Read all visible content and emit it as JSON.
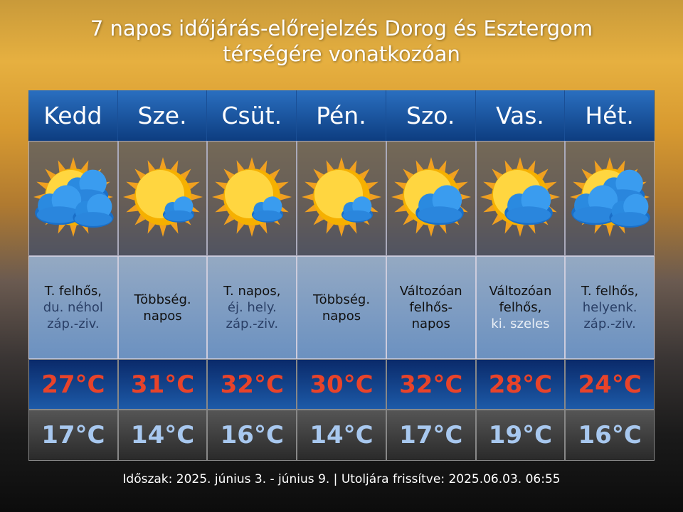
{
  "title": {
    "line1": "7 napos időjárás-előrejelzés Dorog és Esztergom",
    "line2": "térségére vonatkozóan"
  },
  "colors": {
    "high": "#e8432a",
    "low": "#a8c8ef",
    "header": "#1a5aa8"
  },
  "days": [
    {
      "name": "Kedd",
      "icon": "cloudy-sun-icon",
      "desc": [
        {
          "text": "T. felhős,",
          "tone": "dark"
        },
        {
          "text": "du. néhol",
          "tone": "blue"
        },
        {
          "text": "záp.-ziv.",
          "tone": "blue"
        }
      ],
      "high": "27°C",
      "low": "17°C"
    },
    {
      "name": "Sze.",
      "icon": "mostly-sunny-icon",
      "desc": [
        {
          "text": "Többség.",
          "tone": "dark"
        },
        {
          "text": "napos",
          "tone": "dark"
        }
      ],
      "high": "31°C",
      "low": "14°C"
    },
    {
      "name": "Csüt.",
      "icon": "mostly-sunny-icon",
      "desc": [
        {
          "text": "T. napos,",
          "tone": "dark"
        },
        {
          "text": "éj. hely.",
          "tone": "blue"
        },
        {
          "text": "záp.-ziv.",
          "tone": "blue"
        }
      ],
      "high": "32°C",
      "low": "16°C"
    },
    {
      "name": "Pén.",
      "icon": "mostly-sunny-icon",
      "desc": [
        {
          "text": "Többség.",
          "tone": "dark"
        },
        {
          "text": "napos",
          "tone": "dark"
        }
      ],
      "high": "30°C",
      "low": "14°C"
    },
    {
      "name": "Szo.",
      "icon": "partly-cloudy-icon",
      "desc": [
        {
          "text": "Változóan",
          "tone": "dark"
        },
        {
          "text": "felhős-",
          "tone": "dark"
        },
        {
          "text": "napos",
          "tone": "dark"
        }
      ],
      "high": "32°C",
      "low": "17°C"
    },
    {
      "name": "Vas.",
      "icon": "partly-cloudy-icon",
      "desc": [
        {
          "text": "Változóan",
          "tone": "dark"
        },
        {
          "text": "felhős,",
          "tone": "dark"
        },
        {
          "text": "ki. szeles",
          "tone": "light"
        }
      ],
      "high": "28°C",
      "low": "19°C"
    },
    {
      "name": "Hét.",
      "icon": "cloudy-sun-icon",
      "desc": [
        {
          "text": "T. felhős,",
          "tone": "dark"
        },
        {
          "text": "helyenk.",
          "tone": "blue"
        },
        {
          "text": "záp.-ziv.",
          "tone": "blue"
        }
      ],
      "high": "24°C",
      "low": "16°C"
    }
  ],
  "footer": "Időszak: 2025. június 3. - június 9. | Utoljára frissítve: 2025.06.03. 06:55"
}
